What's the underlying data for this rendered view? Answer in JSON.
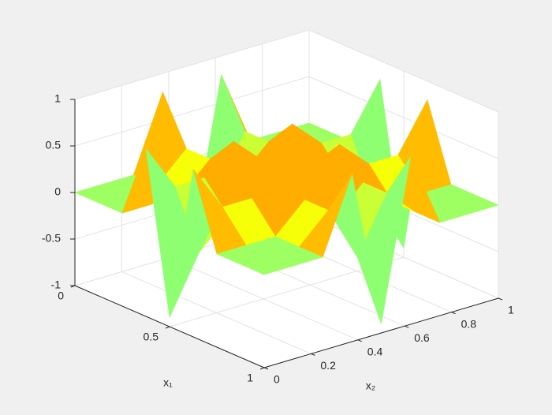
{
  "chart_data": {
    "type": "surface",
    "xlabel": "x₁",
    "ylabel": "x₂",
    "x": [
      0,
      0.125,
      0.25,
      0.375,
      0.5,
      0.625,
      0.75,
      0.875,
      1
    ],
    "y": [
      0,
      0.125,
      0.25,
      0.375,
      0.5,
      0.625,
      0.75,
      0.875,
      1
    ],
    "z": [
      [
        0,
        0,
        0,
        0.8,
        -0.9,
        0.8,
        0,
        0,
        0
      ],
      [
        0,
        0,
        0,
        0.3,
        -0.3,
        0.3,
        0,
        0,
        0
      ],
      [
        0,
        0,
        0,
        0.3,
        0,
        0.3,
        0,
        0,
        0
      ],
      [
        0.8,
        0.3,
        0.3,
        0.6,
        0.3,
        0.6,
        0.3,
        0.3,
        0.8
      ],
      [
        -0.9,
        -0.3,
        0,
        0.3,
        0,
        0.3,
        0,
        -0.3,
        -0.9
      ],
      [
        0.8,
        0.3,
        0.3,
        0.6,
        0.3,
        0.6,
        0.3,
        0.3,
        0.8
      ],
      [
        0,
        0,
        0,
        0.3,
        0,
        0.3,
        0,
        0,
        0
      ],
      [
        0,
        0,
        0,
        0.3,
        -0.3,
        0.3,
        0,
        0,
        0
      ],
      [
        0,
        0,
        0,
        0.8,
        -0.9,
        0.8,
        0,
        0,
        0
      ]
    ],
    "xlim": [
      0,
      1
    ],
    "ylim": [
      0,
      1
    ],
    "zlim": [
      -1,
      1
    ],
    "xticks": [
      0,
      0.5,
      1
    ],
    "yticks": [
      0,
      0.2,
      0.4,
      0.6,
      0.8,
      1
    ],
    "zticks": [
      -1,
      -0.5,
      0,
      0.5,
      1
    ],
    "colormap": "jet",
    "grid": true
  }
}
